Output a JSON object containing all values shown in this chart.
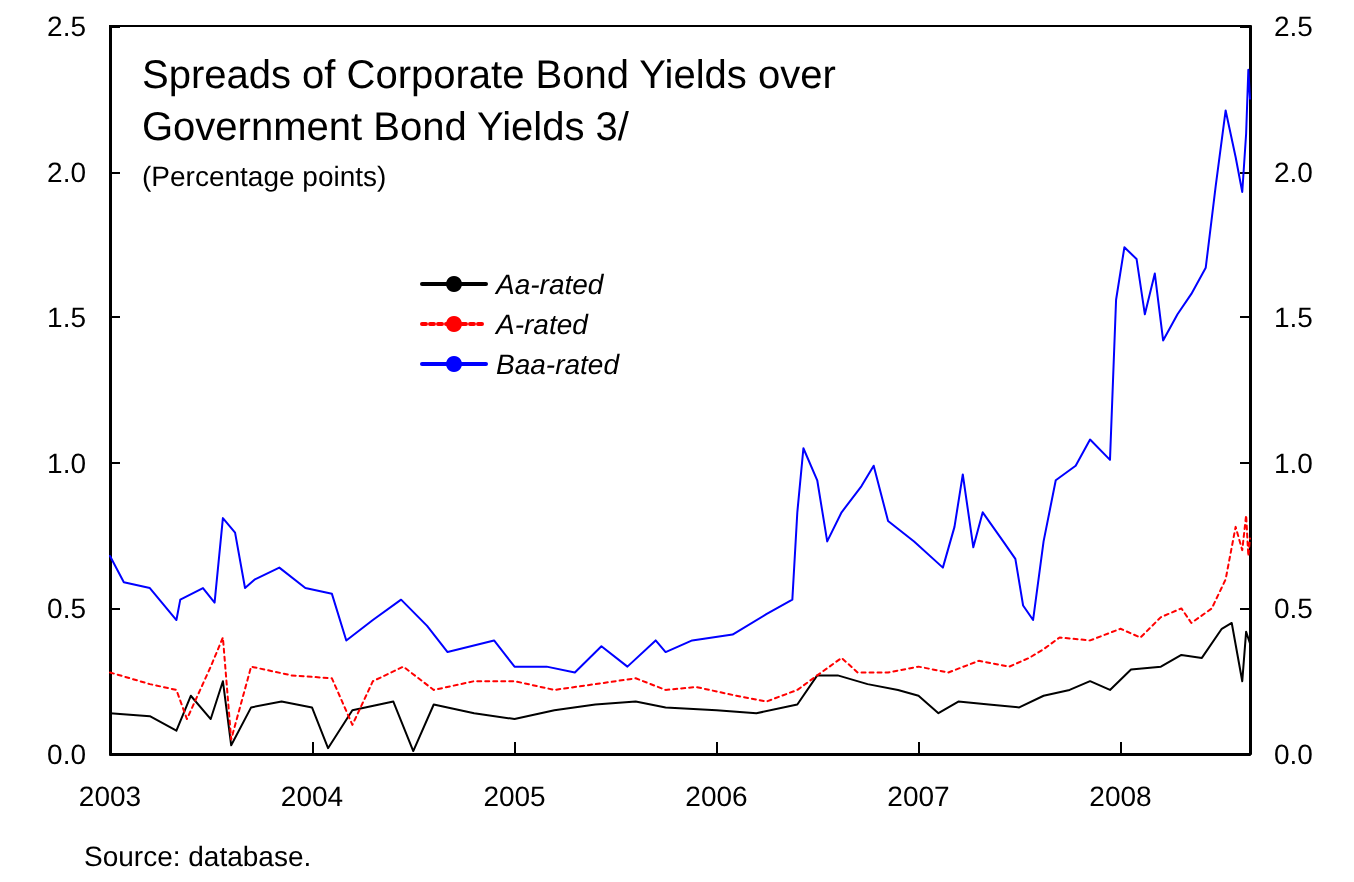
{
  "chart_data": {
    "type": "line",
    "title": "Spreads of Corporate Bond Yields over Government Bond Yields 3/",
    "subtitle": "(Percentage points)",
    "annotations": [
      "Source: database."
    ],
    "xlim": [
      "2003-01-01",
      "2008-08-22"
    ],
    "xticks": [
      "2003",
      "2004",
      "2005",
      "2006",
      "2007",
      "2008"
    ],
    "ylim": [
      0,
      2.5
    ],
    "yticks": [
      {
        "value": 0,
        "label": "0.0"
      },
      {
        "value": 0.5,
        "label": "0.5"
      },
      {
        "value": 1,
        "label": "1.0"
      },
      {
        "value": 1.5,
        "label": "1.5"
      },
      {
        "value": 2,
        "label": "2.0"
      },
      {
        "value": 2.5,
        "label": "2.5"
      }
    ],
    "y2lim": [
      0,
      2.5
    ],
    "y2ticks": [
      {
        "value": 0,
        "label": "0.0"
      },
      {
        "value": 0.5,
        "label": "0.5"
      },
      {
        "value": 1,
        "label": "1.0"
      },
      {
        "value": 1.5,
        "label": "1.5"
      },
      {
        "value": 2,
        "label": "2.0"
      },
      {
        "value": 2.5,
        "label": "2.5"
      }
    ],
    "grid": false,
    "legend": "top left",
    "marker": "none",
    "series": [
      {
        "name": "Aa-rated",
        "color": "#000000",
        "line_style": "solid",
        "x": [
          "2003-01-01",
          "2003-03-14",
          "2003-05-01",
          "2003-05-27",
          "2003-07-02",
          "2003-07-24",
          "2003-08-08",
          "2003-09-13",
          "2003-11-07",
          "2004-01-01",
          "2004-01-30",
          "2004-03-14",
          "2004-05-27",
          "2004-07-02",
          "2004-08-08",
          "2004-10-20",
          "2005-01-01",
          "2005-03-14",
          "2005-05-27",
          "2005-08-08",
          "2005-10-01",
          "2006-01-01",
          "2006-03-14",
          "2006-05-27",
          "2006-07-02",
          "2006-08-08",
          "2006-10-01",
          "2006-11-25",
          "2007-01-01",
          "2007-02-06",
          "2007-03-14",
          "2007-05-08",
          "2007-07-02",
          "2007-08-15",
          "2007-10-01",
          "2007-11-07",
          "2007-12-13",
          "2008-01-20",
          "2008-03-14",
          "2008-04-20",
          "2008-05-27",
          "2008-07-02",
          "2008-07-20",
          "2008-08-08",
          "2008-08-15",
          "2008-08-22"
        ],
        "values": [
          0.14,
          0.13,
          0.08,
          0.2,
          0.12,
          0.25,
          0.03,
          0.16,
          0.18,
          0.16,
          0.02,
          0.15,
          0.18,
          0.01,
          0.17,
          0.14,
          0.12,
          0.15,
          0.17,
          0.18,
          0.16,
          0.15,
          0.14,
          0.17,
          0.27,
          0.27,
          0.24,
          0.22,
          0.2,
          0.14,
          0.18,
          0.17,
          0.16,
          0.2,
          0.22,
          0.25,
          0.22,
          0.29,
          0.3,
          0.34,
          0.33,
          0.43,
          0.45,
          0.25,
          0.42,
          0.38
        ]
      },
      {
        "name": "A-rated",
        "color": "#ff0000",
        "line_style": "dotted",
        "x": [
          "2003-01-01",
          "2003-03-14",
          "2003-05-01",
          "2003-05-20",
          "2003-07-02",
          "2003-07-24",
          "2003-08-08",
          "2003-09-13",
          "2003-11-25",
          "2004-02-06",
          "2004-03-14",
          "2004-04-20",
          "2004-06-14",
          "2004-08-08",
          "2004-10-20",
          "2005-01-01",
          "2005-03-14",
          "2005-05-27",
          "2005-08-08",
          "2005-10-01",
          "2005-11-25",
          "2006-02-06",
          "2006-04-01",
          "2006-05-27",
          "2006-07-02",
          "2006-08-15",
          "2006-09-13",
          "2006-11-07",
          "2007-01-01",
          "2007-02-24",
          "2007-04-20",
          "2007-06-14",
          "2007-07-20",
          "2007-08-15",
          "2007-09-13",
          "2007-11-07",
          "2008-01-01",
          "2008-02-06",
          "2008-03-14",
          "2008-04-20",
          "2008-05-08",
          "2008-06-14",
          "2008-07-09",
          "2008-07-27",
          "2008-08-08",
          "2008-08-15",
          "2008-08-19",
          "2008-08-22"
        ],
        "values": [
          0.28,
          0.24,
          0.22,
          0.12,
          0.3,
          0.4,
          0.05,
          0.3,
          0.27,
          0.26,
          0.1,
          0.25,
          0.3,
          0.22,
          0.25,
          0.25,
          0.22,
          0.24,
          0.26,
          0.22,
          0.23,
          0.2,
          0.18,
          0.22,
          0.27,
          0.33,
          0.28,
          0.28,
          0.3,
          0.28,
          0.32,
          0.3,
          0.33,
          0.36,
          0.4,
          0.39,
          0.43,
          0.4,
          0.47,
          0.5,
          0.45,
          0.5,
          0.6,
          0.78,
          0.7,
          0.82,
          0.68,
          0.74
        ]
      },
      {
        "name": "Baa-rated",
        "color": "#0000ff",
        "line_style": "solid",
        "x": [
          "2003-01-01",
          "2003-01-26",
          "2003-03-14",
          "2003-05-01",
          "2003-05-08",
          "2003-06-18",
          "2003-07-09",
          "2003-07-24",
          "2003-08-15",
          "2003-09-02",
          "2003-09-20",
          "2003-11-03",
          "2003-12-20",
          "2004-02-06",
          "2004-03-03",
          "2004-04-20",
          "2004-06-10",
          "2004-07-27",
          "2004-09-02",
          "2004-11-25",
          "2005-01-01",
          "2005-02-28",
          "2005-04-20",
          "2005-06-07",
          "2005-07-24",
          "2005-09-13",
          "2005-10-01",
          "2005-11-18",
          "2006-01-30",
          "2006-04-01",
          "2006-05-18",
          "2006-05-27",
          "2006-06-07",
          "2006-07-02",
          "2006-07-20",
          "2006-08-15",
          "2006-09-20",
          "2006-10-12",
          "2006-11-07",
          "2006-12-24",
          "2007-02-14",
          "2007-03-07",
          "2007-03-22",
          "2007-04-10",
          "2007-04-27",
          "2007-06-03",
          "2007-06-25",
          "2007-07-09",
          "2007-07-27",
          "2007-08-15",
          "2007-09-06",
          "2007-10-12",
          "2007-11-07",
          "2007-12-13",
          "2007-12-24",
          "2008-01-08",
          "2008-01-30",
          "2008-02-14",
          "2008-03-03",
          "2008-03-18",
          "2008-04-13",
          "2008-05-08",
          "2008-06-03",
          "2008-06-21",
          "2008-07-09",
          "2008-07-27",
          "2008-08-08",
          "2008-08-15",
          "2008-08-19",
          "2008-08-22"
        ],
        "values": [
          0.68,
          0.59,
          0.57,
          0.46,
          0.53,
          0.57,
          0.52,
          0.81,
          0.76,
          0.57,
          0.6,
          0.64,
          0.57,
          0.55,
          0.39,
          0.46,
          0.53,
          0.44,
          0.35,
          0.39,
          0.3,
          0.3,
          0.28,
          0.37,
          0.3,
          0.39,
          0.35,
          0.39,
          0.41,
          0.48,
          0.53,
          0.83,
          1.05,
          0.94,
          0.73,
          0.83,
          0.92,
          0.99,
          0.8,
          0.73,
          0.64,
          0.78,
          0.96,
          0.71,
          0.83,
          0.73,
          0.67,
          0.51,
          0.46,
          0.73,
          0.94,
          0.99,
          1.08,
          1.01,
          1.56,
          1.74,
          1.7,
          1.51,
          1.65,
          1.42,
          1.51,
          1.58,
          1.67,
          1.95,
          2.21,
          2.05,
          1.93,
          2.13,
          2.35,
          2.25
        ]
      }
    ]
  }
}
